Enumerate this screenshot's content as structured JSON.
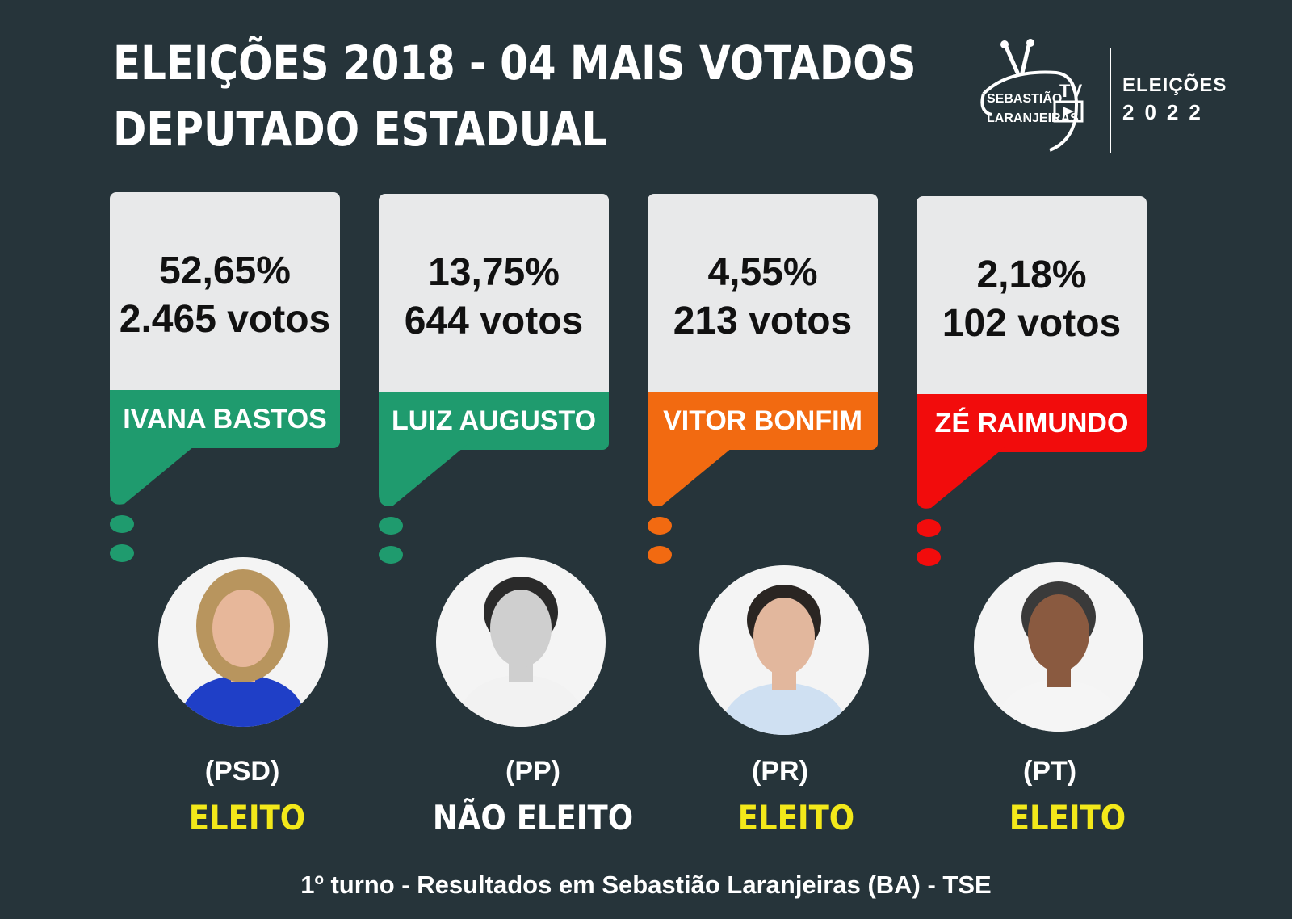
{
  "header": {
    "line1": "ELEIÇÕES 2018 - 04 MAIS VOTADOS",
    "line2": "DEPUTADO ESTADUAL"
  },
  "logo": {
    "name_line1": "SEBASTIÃO",
    "name_line2": "LARANJEIRAS",
    "tv_label": "TV",
    "elections_label": "ELEIÇÕES",
    "elections_year": "2022"
  },
  "candidates": [
    {
      "name": "IVANA BASTOS",
      "percent": "52,65%",
      "votes": "2.465 votos",
      "party": "(PSD)",
      "status": "ELEITO",
      "color": "#1f9b6e",
      "status_color": "#f3e81a"
    },
    {
      "name": "LUIZ AUGUSTO",
      "percent": "13,75%",
      "votes": "644 votos",
      "party": "(PP)",
      "status": "NÃO ELEITO",
      "color": "#1f9b6e",
      "status_color": "#ffffff"
    },
    {
      "name": "VITOR BONFIM",
      "percent": "4,55%",
      "votes": "213 votos",
      "party": "(PR)",
      "status": "ELEITO",
      "color": "#f26a11",
      "status_color": "#f3e81a"
    },
    {
      "name": "ZÉ RAIMUNDO",
      "percent": "2,18%",
      "votes": "102 votos",
      "party": "(PT)",
      "status": "ELEITO",
      "color": "#f20c0c",
      "status_color": "#f3e81a"
    }
  ],
  "footer": "1º turno - Resultados em Sebastião Laranjeiras (BA) - TSE"
}
